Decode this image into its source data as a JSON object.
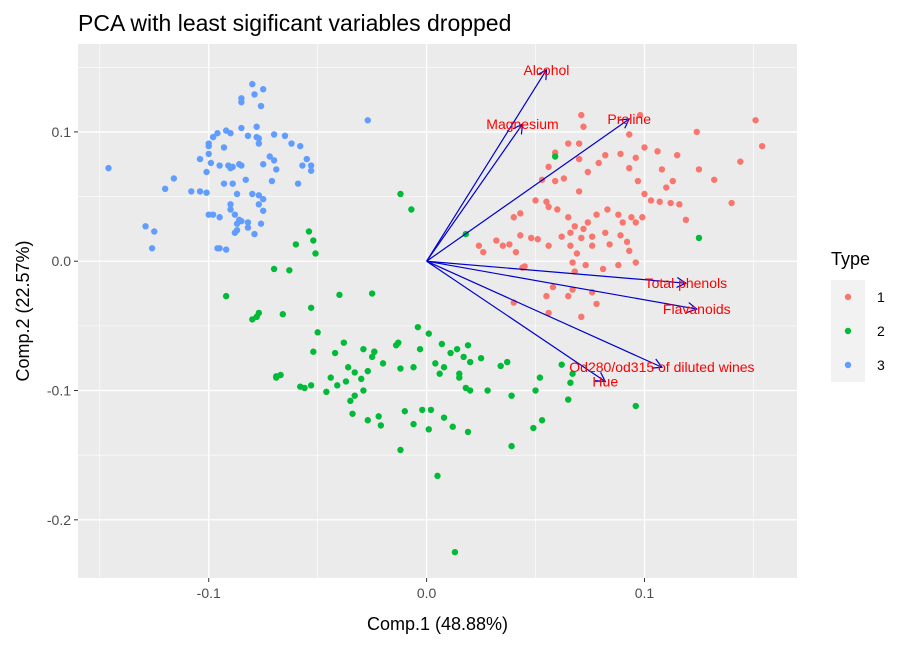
{
  "chart_data": {
    "type": "scatter",
    "title": "PCA with least sigificant variables dropped",
    "xlabel": "Comp.1 (48.88%)",
    "ylabel": "Comp.2 (22.57%)",
    "xlim": [
      -0.16,
      0.17
    ],
    "ylim": [
      -0.245,
      0.168
    ],
    "x_ticks": [
      -0.1,
      0.0,
      0.1
    ],
    "x_tick_labels": [
      "-0.1",
      "0.0",
      "0.1"
    ],
    "y_ticks": [
      -0.2,
      -0.1,
      0.0,
      0.1
    ],
    "y_tick_labels": [
      "-0.2",
      "-0.1",
      "0.0",
      "0.1"
    ],
    "grid": true,
    "legend": {
      "title": "Type",
      "position": "right",
      "entries": [
        {
          "label": "1",
          "color": "#F8766D"
        },
        {
          "label": "2",
          "color": "#00BA38"
        },
        {
          "label": "3",
          "color": "#619CFF"
        }
      ]
    },
    "arrow_color": "#0000CD",
    "loading_label_color": "#FF0000",
    "loadings": [
      {
        "label": "Alcohol",
        "x": 0.055,
        "y": 0.148
      },
      {
        "label": "Magnesium",
        "x": 0.044,
        "y": 0.106
      },
      {
        "label": "Proline",
        "x": 0.093,
        "y": 0.11
      },
      {
        "label": "Total phenols",
        "x": 0.119,
        "y": -0.017
      },
      {
        "label": "Flavanoids",
        "x": 0.124,
        "y": -0.037
      },
      {
        "label": "Od280/od315 of diluted wines",
        "x": 0.108,
        "y": -0.082
      },
      {
        "label": "Hue",
        "x": 0.082,
        "y": -0.093
      }
    ],
    "series": [
      {
        "name": "1",
        "color": "#F8766D",
        "points": [
          [
            0.072,
            0.104
          ],
          [
            0.071,
            0.113
          ],
          [
            0.098,
            0.113
          ],
          [
            0.093,
            0.098
          ],
          [
            0.124,
            0.1
          ],
          [
            0.151,
            0.109
          ],
          [
            0.154,
            0.089
          ],
          [
            0.144,
            0.077
          ],
          [
            0.132,
            0.063
          ],
          [
            0.125,
            0.071
          ],
          [
            0.1,
            0.088
          ],
          [
            0.106,
            0.085
          ],
          [
            0.115,
            0.082
          ],
          [
            0.113,
            0.062
          ],
          [
            0.11,
            0.057
          ],
          [
            0.107,
            0.046
          ],
          [
            0.112,
            0.045
          ],
          [
            0.116,
            0.044
          ],
          [
            0.14,
            0.045
          ],
          [
            0.119,
            0.032
          ],
          [
            0.096,
            0.08
          ],
          [
            0.093,
            0.072
          ],
          [
            0.089,
            0.083
          ],
          [
            0.082,
            0.082
          ],
          [
            0.079,
            0.076
          ],
          [
            0.074,
            0.069
          ],
          [
            0.07,
            0.079
          ],
          [
            0.07,
            0.091
          ],
          [
            0.065,
            0.091
          ],
          [
            0.059,
            0.084
          ],
          [
            0.056,
            0.073
          ],
          [
            0.059,
            0.062
          ],
          [
            0.063,
            0.064
          ],
          [
            0.053,
            0.063
          ],
          [
            0.05,
            0.047
          ],
          [
            0.055,
            0.046
          ],
          [
            0.06,
            0.04
          ],
          [
            0.065,
            0.034
          ],
          [
            0.068,
            0.027
          ],
          [
            0.066,
            0.022
          ],
          [
            0.071,
            0.018
          ],
          [
            0.076,
            0.019
          ],
          [
            0.082,
            0.022
          ],
          [
            0.09,
            0.03
          ],
          [
            0.094,
            0.034
          ],
          [
            0.088,
            0.036
          ],
          [
            0.083,
            0.04
          ],
          [
            0.078,
            0.036
          ],
          [
            0.074,
            0.03
          ],
          [
            0.072,
            0.025
          ],
          [
            0.076,
            0.012
          ],
          [
            0.084,
            0.013
          ],
          [
            0.092,
            0.015
          ],
          [
            0.089,
            0.02
          ],
          [
            0.096,
            0.03
          ],
          [
            0.099,
            0.034
          ],
          [
            0.103,
            0.047
          ],
          [
            0.1,
            0.052
          ],
          [
            0.097,
            0.062
          ],
          [
            0.108,
            0.071
          ],
          [
            0.043,
            0.037
          ],
          [
            0.04,
            0.034
          ],
          [
            0.038,
            0.013
          ],
          [
            0.035,
            0.012
          ],
          [
            0.026,
            0.007
          ],
          [
            0.024,
            0.012
          ],
          [
            0.032,
            0.016
          ],
          [
            0.043,
            0.02
          ],
          [
            0.048,
            0.018
          ],
          [
            0.051,
            0.017
          ],
          [
            0.056,
            0.012
          ],
          [
            0.062,
            0.019
          ],
          [
            0.066,
            0.012
          ],
          [
            0.069,
            0.006
          ],
          [
            0.067,
            -0.001
          ],
          [
            0.073,
            -0.003
          ],
          [
            0.081,
            -0.006
          ],
          [
            0.088,
            -0.003
          ],
          [
            0.096,
            -0.001
          ],
          [
            0.093,
            0.008
          ],
          [
            0.068,
            -0.008
          ],
          [
            0.067,
            -0.022
          ],
          [
            0.058,
            -0.02
          ],
          [
            0.055,
            -0.027
          ],
          [
            0.065,
            -0.027
          ],
          [
            0.076,
            -0.024
          ],
          [
            0.078,
            -0.033
          ],
          [
            0.071,
            -0.043
          ],
          [
            0.056,
            -0.04
          ],
          [
            0.04,
            -0.032
          ],
          [
            0.044,
            -0.005
          ],
          [
            0.045,
            -0.004
          ],
          [
            0.041,
            0.007
          ],
          [
            0.056,
            0.042
          ],
          [
            0.07,
            0.054
          ]
        ]
      },
      {
        "name": "2",
        "color": "#00BA38",
        "points": [
          [
            0.059,
            0.081
          ],
          [
            -0.012,
            0.052
          ],
          [
            -0.007,
            0.04
          ],
          [
            0.018,
            0.021
          ],
          [
            -0.054,
            0.023
          ],
          [
            -0.06,
            0.013
          ],
          [
            -0.052,
            0.016
          ],
          [
            -0.051,
            0.006
          ],
          [
            -0.063,
            -0.007
          ],
          [
            -0.07,
            -0.006
          ],
          [
            -0.092,
            -0.027
          ],
          [
            -0.04,
            -0.026
          ],
          [
            -0.025,
            -0.025
          ],
          [
            -0.053,
            -0.036
          ],
          [
            -0.077,
            -0.04
          ],
          [
            -0.078,
            -0.043
          ],
          [
            -0.08,
            -0.045
          ],
          [
            -0.066,
            -0.041
          ],
          [
            -0.05,
            -0.055
          ],
          [
            -0.052,
            -0.07
          ],
          [
            -0.038,
            -0.063
          ],
          [
            -0.029,
            -0.068
          ],
          [
            -0.024,
            -0.07
          ],
          [
            -0.013,
            -0.063
          ],
          [
            -0.014,
            -0.065
          ],
          [
            -0.003,
            -0.068
          ],
          [
            -0.004,
            -0.051
          ],
          [
            0.001,
            -0.056
          ],
          [
            0.007,
            -0.064
          ],
          [
            0.011,
            -0.071
          ],
          [
            0.019,
            -0.065
          ],
          [
            0.014,
            -0.068
          ],
          [
            0.017,
            -0.074
          ],
          [
            0.025,
            -0.075
          ],
          [
            0.037,
            -0.078
          ],
          [
            0.034,
            -0.081
          ],
          [
            0.02,
            -0.078
          ],
          [
            0.015,
            -0.087
          ],
          [
            0.008,
            -0.082
          ],
          [
            0.004,
            -0.079
          ],
          [
            0.006,
            -0.087
          ],
          [
            -0.006,
            -0.082
          ],
          [
            -0.012,
            -0.083
          ],
          [
            -0.02,
            -0.079
          ],
          [
            -0.024,
            -0.07
          ],
          [
            -0.025,
            -0.074
          ],
          [
            -0.027,
            -0.085
          ],
          [
            -0.036,
            -0.082
          ],
          [
            -0.033,
            -0.086
          ],
          [
            -0.037,
            -0.093
          ],
          [
            -0.041,
            -0.096
          ],
          [
            -0.044,
            -0.09
          ],
          [
            -0.046,
            -0.101
          ],
          [
            -0.053,
            -0.096
          ],
          [
            -0.069,
            -0.09
          ],
          [
            -0.058,
            -0.097
          ],
          [
            -0.067,
            -0.088
          ],
          [
            -0.069,
            -0.089
          ],
          [
            -0.03,
            -0.091
          ],
          [
            -0.029,
            -0.1
          ],
          [
            -0.033,
            -0.104
          ],
          [
            -0.035,
            -0.108
          ],
          [
            -0.034,
            -0.118
          ],
          [
            -0.022,
            -0.12
          ],
          [
            -0.021,
            -0.127
          ],
          [
            -0.027,
            -0.123
          ],
          [
            -0.01,
            -0.116
          ],
          [
            -0.002,
            -0.115
          ],
          [
            0.001,
            -0.13
          ],
          [
            -0.006,
            -0.126
          ],
          [
            0.008,
            -0.121
          ],
          [
            0.012,
            -0.128
          ],
          [
            0.019,
            -0.132
          ],
          [
            0.02,
            -0.1
          ],
          [
            0.018,
            -0.098
          ],
          [
            0.028,
            -0.1
          ],
          [
            0.039,
            -0.104
          ],
          [
            0.052,
            -0.09
          ],
          [
            0.05,
            -0.1
          ],
          [
            0.065,
            -0.107
          ],
          [
            0.066,
            -0.094
          ],
          [
            0.062,
            -0.08
          ],
          [
            0.067,
            -0.087
          ],
          [
            0.053,
            -0.123
          ],
          [
            0.049,
            -0.129
          ],
          [
            0.039,
            -0.143
          ],
          [
            0.096,
            -0.112
          ],
          [
            0.125,
            0.018
          ],
          [
            -0.012,
            -0.146
          ],
          [
            0.005,
            -0.166
          ],
          [
            0.013,
            -0.225
          ],
          [
            0.015,
            -0.09
          ],
          [
            0.002,
            -0.115
          ],
          [
            -0.056,
            -0.098
          ],
          [
            -0.042,
            -0.071
          ]
        ]
      },
      {
        "name": "3",
        "color": "#619CFF",
        "points": [
          [
            -0.027,
            0.109
          ],
          [
            -0.146,
            0.072
          ],
          [
            -0.129,
            0.027
          ],
          [
            -0.125,
            0.023
          ],
          [
            -0.126,
            0.01
          ],
          [
            -0.12,
            0.056
          ],
          [
            -0.116,
            0.064
          ],
          [
            -0.108,
            0.054
          ],
          [
            -0.104,
            0.054
          ],
          [
            -0.101,
            0.053
          ],
          [
            -0.104,
            0.079
          ],
          [
            -0.101,
            0.069
          ],
          [
            -0.099,
            0.076
          ],
          [
            -0.095,
            0.074
          ],
          [
            -0.098,
            0.096
          ],
          [
            -0.1,
            0.091
          ],
          [
            -0.096,
            0.099
          ],
          [
            -0.09,
            0.099
          ],
          [
            -0.085,
            0.103
          ],
          [
            -0.078,
            0.096
          ],
          [
            -0.082,
            0.097
          ],
          [
            -0.077,
            0.091
          ],
          [
            -0.078,
            0.104
          ],
          [
            -0.077,
            0.095
          ],
          [
            -0.072,
            0.081
          ],
          [
            -0.07,
            0.098
          ],
          [
            -0.065,
            0.097
          ],
          [
            -0.062,
            0.091
          ],
          [
            -0.058,
            0.089
          ],
          [
            -0.055,
            0.079
          ],
          [
            -0.059,
            0.06
          ],
          [
            -0.057,
            0.074
          ],
          [
            -0.053,
            0.074
          ],
          [
            -0.053,
            0.07
          ],
          [
            -0.086,
            0.075
          ],
          [
            -0.085,
            0.074
          ],
          [
            -0.089,
            0.073
          ],
          [
            -0.091,
            0.074
          ],
          [
            -0.09,
            0.072
          ],
          [
            -0.093,
            0.06
          ],
          [
            -0.089,
            0.06
          ],
          [
            -0.083,
            0.063
          ],
          [
            -0.087,
            0.052
          ],
          [
            -0.077,
            0.051
          ],
          [
            -0.08,
            0.052
          ],
          [
            -0.09,
            0.04
          ],
          [
            -0.095,
            0.034
          ],
          [
            -0.1,
            0.036
          ],
          [
            -0.098,
            0.036
          ],
          [
            -0.088,
            0.036
          ],
          [
            -0.077,
            0.044
          ],
          [
            -0.075,
            0.039
          ],
          [
            -0.085,
            0.031
          ],
          [
            -0.082,
            0.03
          ],
          [
            -0.076,
            0.029
          ],
          [
            -0.075,
            0.048
          ],
          [
            -0.071,
            0.062
          ],
          [
            -0.075,
            0.075
          ],
          [
            -0.069,
            0.071
          ],
          [
            -0.07,
            0.078
          ],
          [
            -0.079,
            0.129
          ],
          [
            -0.076,
            0.12
          ],
          [
            -0.075,
            0.133
          ],
          [
            -0.08,
            0.137
          ],
          [
            -0.085,
            0.126
          ],
          [
            -0.085,
            0.123
          ],
          [
            -0.092,
            0.101
          ],
          [
            -0.093,
            0.088
          ],
          [
            -0.1,
            0.089
          ],
          [
            -0.1,
            0.083
          ],
          [
            -0.096,
            0.01
          ],
          [
            -0.095,
            0.01
          ],
          [
            -0.092,
            0.009
          ],
          [
            -0.086,
            0.032
          ],
          [
            -0.087,
            0.029
          ],
          [
            -0.079,
            0.021
          ],
          [
            -0.082,
            0.026
          ],
          [
            -0.087,
            0.024
          ],
          [
            -0.088,
            0.022
          ],
          [
            -0.09,
            0.044
          ]
        ]
      }
    ]
  }
}
